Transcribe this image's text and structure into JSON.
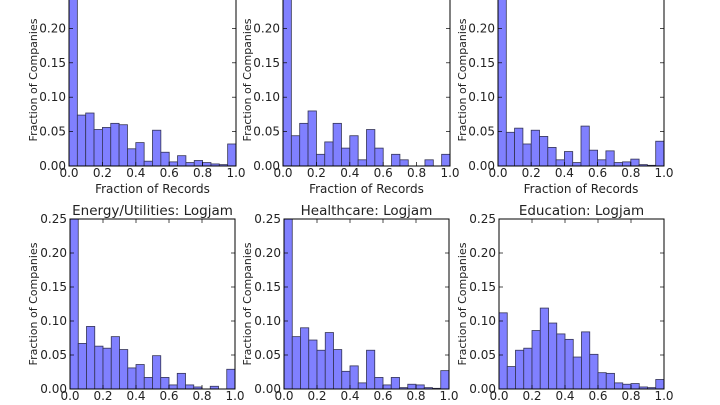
{
  "chart_data": [
    {
      "type": "bar",
      "title": "",
      "xlabel": "Fraction of Records",
      "ylabel": "Fraction of Companies",
      "xlim": [
        0,
        1
      ],
      "ylim": [
        0,
        0.25
      ],
      "xticks": [
        "0.0",
        "0.2",
        "0.4",
        "0.6",
        "0.8",
        "1.0"
      ],
      "yticks": [
        "0.00",
        "0.05",
        "0.10",
        "0.15",
        "0.20"
      ],
      "bin_width": 0.05,
      "values": [
        0.26,
        0.074,
        0.077,
        0.053,
        0.056,
        0.062,
        0.06,
        0.025,
        0.034,
        0.007,
        0.052,
        0.02,
        0.006,
        0.015,
        0.005,
        0.008,
        0.005,
        0.003,
        0.002,
        0.032
      ]
    },
    {
      "type": "bar",
      "title": "",
      "xlabel": "Fraction of Records",
      "ylabel": "Fraction of Companies",
      "xlim": [
        0,
        1
      ],
      "ylim": [
        0,
        0.25
      ],
      "xticks": [
        "0.0",
        "0.2",
        "0.4",
        "0.6",
        "0.8",
        "1.0"
      ],
      "yticks": [
        "0.00",
        "0.05",
        "0.10",
        "0.15",
        "0.20"
      ],
      "bin_width": 0.05,
      "values": [
        0.26,
        0.044,
        0.062,
        0.08,
        0.017,
        0.035,
        0.062,
        0.026,
        0.044,
        0.009,
        0.053,
        0.026,
        0,
        0.017,
        0.009,
        0,
        0,
        0.009,
        0,
        0.017
      ]
    },
    {
      "type": "bar",
      "title": "",
      "xlabel": "Fraction of Records",
      "ylabel": "Fraction of Companies",
      "xlim": [
        0,
        1
      ],
      "ylim": [
        0,
        0.25
      ],
      "xticks": [
        "0.0",
        "0.2",
        "0.4",
        "0.6",
        "0.8",
        "1.0"
      ],
      "yticks": [
        "0.00",
        "0.05",
        "0.10",
        "0.15",
        "0.20"
      ],
      "bin_width": 0.05,
      "values": [
        0.26,
        0.049,
        0.055,
        0.032,
        0.052,
        0.043,
        0.027,
        0.009,
        0.021,
        0.005,
        0.058,
        0.023,
        0.009,
        0.022,
        0.005,
        0.006,
        0.01,
        0.002,
        0.001,
        0.036
      ]
    },
    {
      "type": "bar",
      "title": "Energy/Utilities: Logjam",
      "xlabel": "",
      "ylabel": "Fraction of Companies",
      "xlim": [
        0,
        1
      ],
      "ylim": [
        0,
        0.25
      ],
      "xticks": [
        "0.0",
        "0.2",
        "0.4",
        "0.6",
        "0.8",
        "1.0"
      ],
      "yticks": [
        "0.00",
        "0.05",
        "0.10",
        "0.15",
        "0.20",
        "0.25"
      ],
      "bin_width": 0.05,
      "values": [
        0.26,
        0.067,
        0.092,
        0.063,
        0.06,
        0.077,
        0.058,
        0.031,
        0.036,
        0.017,
        0.049,
        0.017,
        0.006,
        0.023,
        0.006,
        0.003,
        0,
        0.004,
        0,
        0.029
      ]
    },
    {
      "type": "bar",
      "title": "Healthcare: Logjam",
      "xlabel": "",
      "ylabel": "Fraction of Companies",
      "xlim": [
        0,
        1
      ],
      "ylim": [
        0,
        0.25
      ],
      "xticks": [
        "0.0",
        "0.2",
        "0.4",
        "0.6",
        "0.8",
        "1.0"
      ],
      "yticks": [
        "0.00",
        "0.05",
        "0.10",
        "0.15",
        "0.20",
        "0.25"
      ],
      "bin_width": 0.05,
      "values": [
        0.26,
        0.077,
        0.09,
        0.072,
        0.057,
        0.083,
        0.058,
        0.026,
        0.034,
        0.009,
        0.057,
        0.017,
        0.006,
        0.017,
        0.002,
        0.007,
        0.006,
        0.002,
        0.001,
        0.027
      ]
    },
    {
      "type": "bar",
      "title": "Education: Logjam",
      "xlabel": "",
      "ylabel": "Fraction of Companies",
      "xlim": [
        0,
        1
      ],
      "ylim": [
        0,
        0.25
      ],
      "xticks": [
        "0.0",
        "0.2",
        "0.4",
        "0.6",
        "0.8",
        "1.0"
      ],
      "yticks": [
        "0.00",
        "0.05",
        "0.10",
        "0.15",
        "0.20",
        "0.25"
      ],
      "bin_width": 0.05,
      "values": [
        0.112,
        0.033,
        0.057,
        0.06,
        0.086,
        0.119,
        0.097,
        0.081,
        0.073,
        0.047,
        0.084,
        0.051,
        0.024,
        0.023,
        0.009,
        0.007,
        0.008,
        0.003,
        0.002,
        0.014
      ]
    }
  ],
  "colors": {
    "bar_fill": "#8080ff",
    "bar_edge": "#333355",
    "axis": "#000000"
  }
}
